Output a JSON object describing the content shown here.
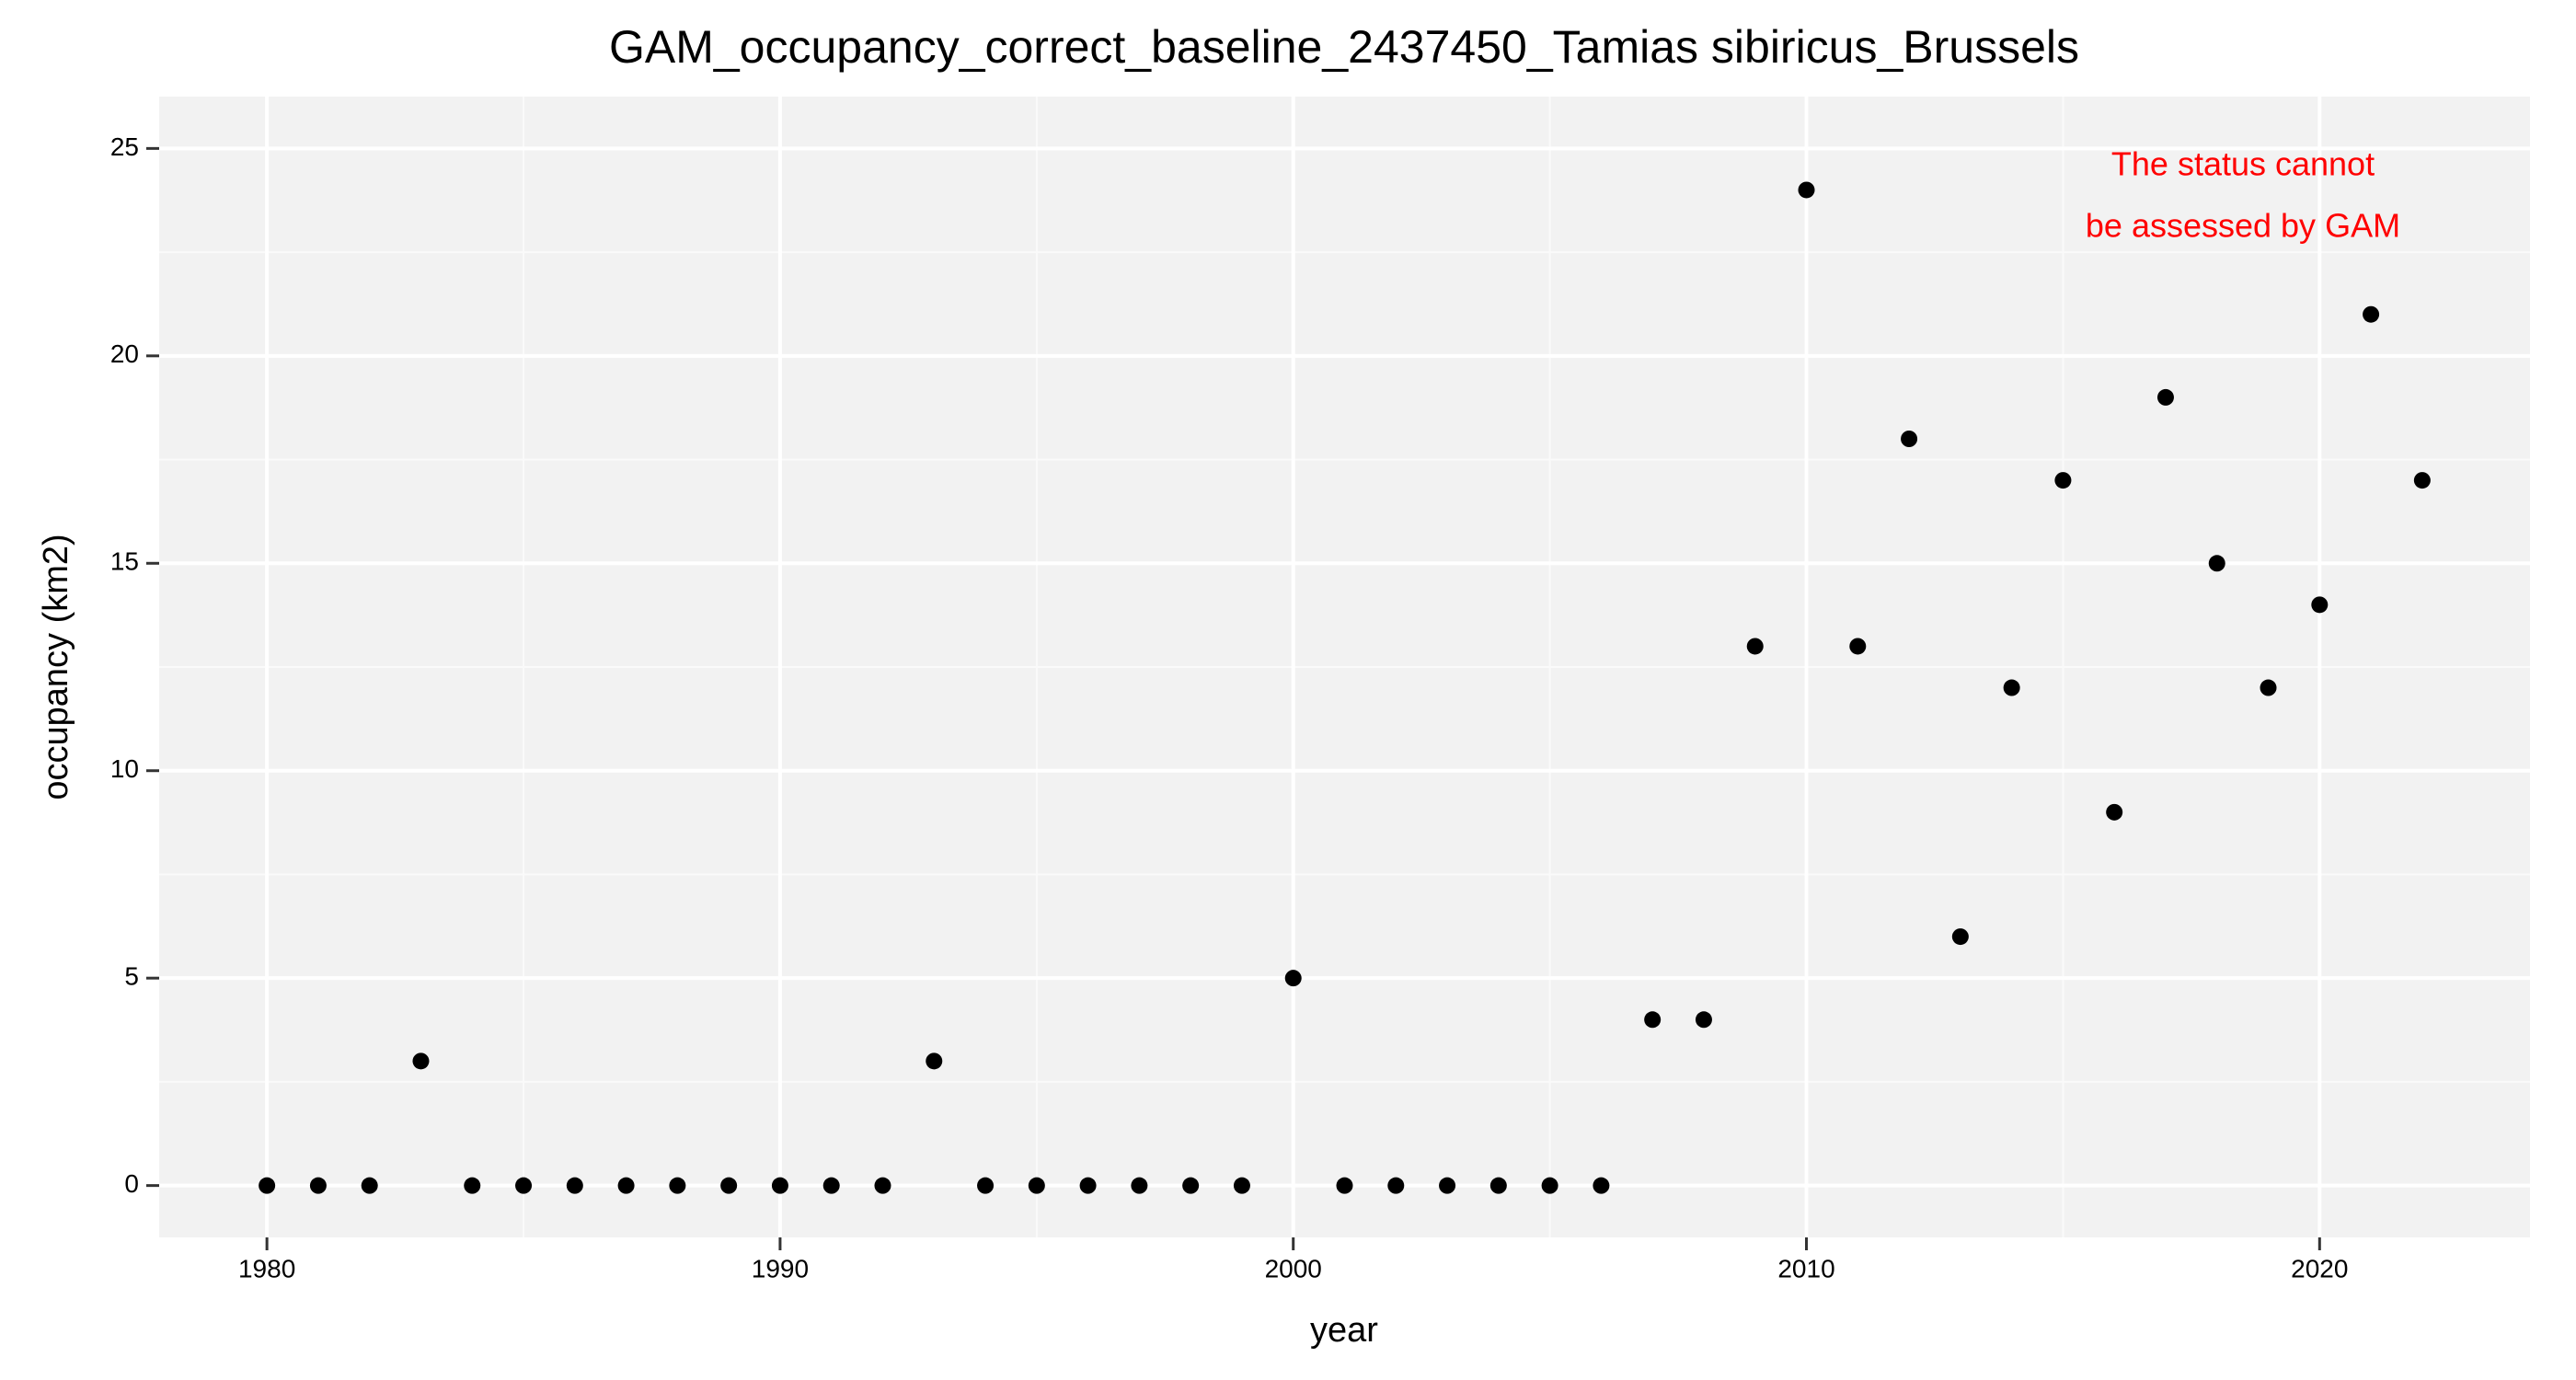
{
  "chart_data": {
    "type": "scatter",
    "title": "GAM_occupancy_correct_baseline_2437450_Tamias sibiricus_Brussels",
    "x_label": "year",
    "y_label": "occupancy (km2)",
    "annotation": [
      "The status cannot",
      "be assessed by GAM"
    ],
    "annotation_color": "#ff0000",
    "x": [
      1980,
      1981,
      1982,
      1983,
      1984,
      1985,
      1986,
      1987,
      1988,
      1989,
      1990,
      1991,
      1992,
      1993,
      1994,
      1995,
      1996,
      1997,
      1998,
      1999,
      2000,
      2001,
      2002,
      2003,
      2004,
      2005,
      2006,
      2007,
      2008,
      2009,
      2010,
      2011,
      2012,
      2013,
      2014,
      2015,
      2016,
      2017,
      2018,
      2019,
      2020,
      2021,
      2022
    ],
    "values": [
      0,
      0,
      0,
      3,
      0,
      0,
      0,
      0,
      0,
      0,
      0,
      0,
      0,
      3,
      0,
      0,
      0,
      0,
      0,
      0,
      5,
      0,
      0,
      0,
      0,
      0,
      0,
      4,
      4,
      13,
      24,
      13,
      18,
      6,
      12,
      17,
      9,
      19,
      15,
      12,
      14,
      21,
      17
    ],
    "color": "#000000",
    "xlim": [
      1977.9,
      2024.1
    ],
    "xticks": [
      1980,
      1990,
      2000,
      2010,
      2020
    ],
    "ylim": [
      -1.25,
      26.25
    ],
    "yticks": [
      0,
      5,
      10,
      15,
      20,
      25
    ],
    "grid": true
  }
}
